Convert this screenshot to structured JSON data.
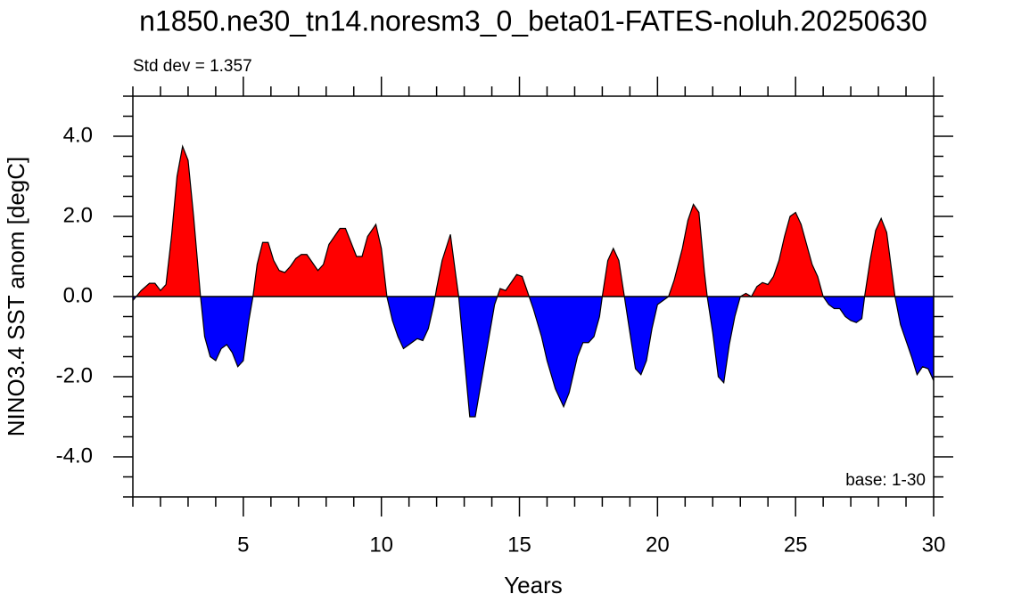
{
  "chart_data": {
    "type": "area",
    "title": "n1850.ne30_tn14.noresm3_0_beta01-FATES-noluh.20250630",
    "annotations": [
      "Std dev = 1.357",
      "base: 1-30"
    ],
    "xlabel": "Years",
    "ylabel": "NINO3.4 SST anom [degC]",
    "positive_color": "#ff0000",
    "negative_color": "#0000ff",
    "xlim": [
      1,
      30
    ],
    "ylim": [
      -5,
      5
    ],
    "xticks": [
      5,
      10,
      15,
      20,
      25,
      30
    ],
    "xticks_minor": [
      1,
      2,
      3,
      4,
      6,
      7,
      8,
      9,
      11,
      12,
      13,
      14,
      16,
      17,
      18,
      19,
      21,
      22,
      23,
      24,
      26,
      27,
      28,
      29
    ],
    "yticks": [
      {
        "value": 4,
        "label": "4.0"
      },
      {
        "value": 2,
        "label": "2.0"
      },
      {
        "value": 0,
        "label": "0.0"
      },
      {
        "value": -2,
        "label": "-2.0"
      },
      {
        "value": -4,
        "label": "-4.0"
      }
    ],
    "yticks_minor": [
      -5,
      -4.5,
      -3.5,
      -3,
      -2.5,
      -1.5,
      -1,
      -0.5,
      0.5,
      1,
      1.5,
      2.5,
      3,
      3.5,
      4.5,
      5
    ],
    "x": [
      1.0,
      1.3,
      1.6,
      1.8,
      2.0,
      2.2,
      2.4,
      2.6,
      2.8,
      3.0,
      3.2,
      3.45,
      3.6,
      3.8,
      4.0,
      4.2,
      4.4,
      4.6,
      4.8,
      5.0,
      5.2,
      5.35,
      5.5,
      5.7,
      5.9,
      6.1,
      6.3,
      6.5,
      6.7,
      6.9,
      7.1,
      7.3,
      7.5,
      7.7,
      7.9,
      8.1,
      8.3,
      8.5,
      8.7,
      8.9,
      9.1,
      9.3,
      9.5,
      9.8,
      10.0,
      10.2,
      10.4,
      10.6,
      10.8,
      11.0,
      11.3,
      11.5,
      11.7,
      11.9,
      12.0,
      12.2,
      12.5,
      12.7,
      12.8,
      13.0,
      13.2,
      13.4,
      13.6,
      13.9,
      14.1,
      14.3,
      14.5,
      14.7,
      14.9,
      15.1,
      15.3,
      15.5,
      15.8,
      16.0,
      16.3,
      16.6,
      16.8,
      17.1,
      17.3,
      17.5,
      17.7,
      17.9,
      18.0,
      18.2,
      18.4,
      18.6,
      18.8,
      19.0,
      19.2,
      19.4,
      19.6,
      19.8,
      20.0,
      20.2,
      20.4,
      20.6,
      20.9,
      21.1,
      21.3,
      21.5,
      21.7,
      21.8,
      22.0,
      22.2,
      22.4,
      22.6,
      22.8,
      23.0,
      23.2,
      23.4,
      23.6,
      23.8,
      24.0,
      24.2,
      24.4,
      24.6,
      24.8,
      25.0,
      25.2,
      25.4,
      25.6,
      25.8,
      26.0,
      26.2,
      26.4,
      26.6,
      26.8,
      27.0,
      27.2,
      27.4,
      27.5,
      27.7,
      27.9,
      28.1,
      28.3,
      28.6,
      28.8,
      29.0,
      29.2,
      29.4,
      29.6,
      29.8,
      30.0
    ],
    "values": [
      -0.1,
      0.15,
      0.33,
      0.33,
      0.15,
      0.3,
      1.5,
      3.0,
      3.75,
      3.4,
      2.0,
      0.0,
      -1.0,
      -1.5,
      -1.6,
      -1.3,
      -1.2,
      -1.4,
      -1.75,
      -1.6,
      -0.6,
      0.0,
      0.8,
      1.35,
      1.35,
      0.9,
      0.65,
      0.6,
      0.75,
      0.95,
      1.05,
      1.05,
      0.85,
      0.65,
      0.8,
      1.3,
      1.5,
      1.7,
      1.7,
      1.35,
      1.0,
      1.0,
      1.5,
      1.8,
      1.2,
      0.0,
      -0.6,
      -1.0,
      -1.3,
      -1.2,
      -1.05,
      -1.1,
      -0.8,
      -0.2,
      0.2,
      0.9,
      1.55,
      0.5,
      0.0,
      -1.5,
      -3.0,
      -3.0,
      -2.2,
      -1.0,
      -0.2,
      0.2,
      0.15,
      0.35,
      0.55,
      0.5,
      0.1,
      -0.3,
      -1.0,
      -1.6,
      -2.3,
      -2.75,
      -2.4,
      -1.5,
      -1.15,
      -1.15,
      -1.0,
      -0.5,
      0.0,
      0.9,
      1.2,
      0.9,
      0.0,
      -0.9,
      -1.8,
      -1.95,
      -1.6,
      -0.8,
      -0.2,
      -0.1,
      0.0,
      0.4,
      1.2,
      1.9,
      2.3,
      2.1,
      0.6,
      0.0,
      -0.9,
      -2.0,
      -2.15,
      -1.2,
      -0.5,
      0.0,
      0.08,
      0.0,
      0.25,
      0.35,
      0.3,
      0.5,
      0.9,
      1.5,
      2.0,
      2.1,
      1.8,
      1.3,
      0.8,
      0.5,
      0.0,
      -0.2,
      -0.3,
      -0.3,
      -0.5,
      -0.6,
      -0.65,
      -0.55,
      0.0,
      0.9,
      1.65,
      1.95,
      1.6,
      0.0,
      -0.7,
      -1.1,
      -1.5,
      -1.95,
      -1.75,
      -1.8,
      -2.1
    ]
  }
}
